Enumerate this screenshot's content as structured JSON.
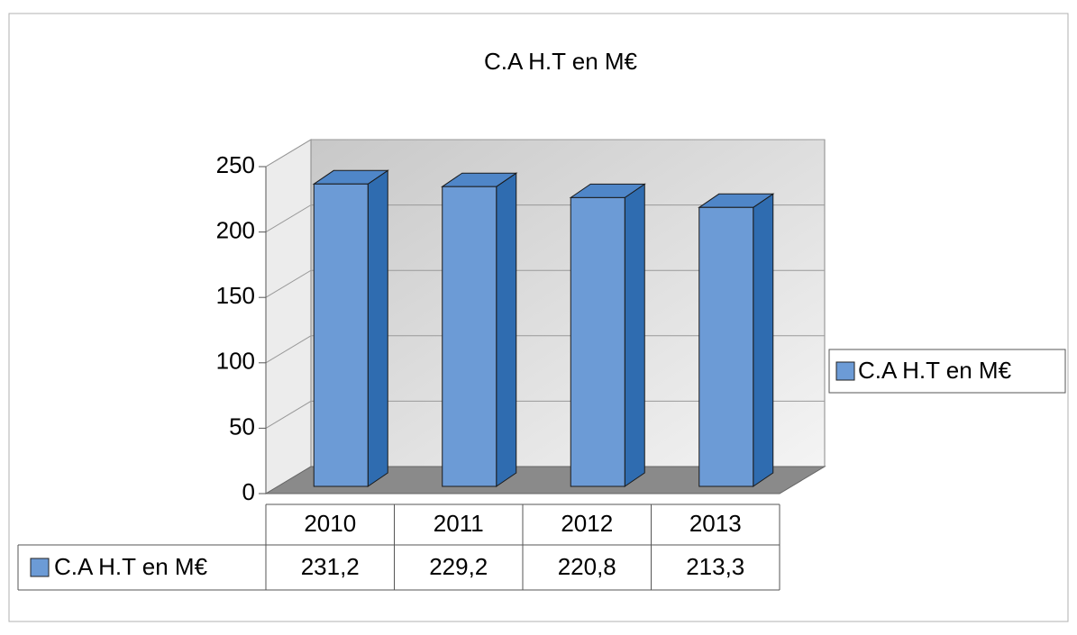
{
  "chart_data": {
    "type": "bar3d",
    "title": "C.A H.T en M€",
    "categories": [
      "2010",
      "2011",
      "2012",
      "2013"
    ],
    "series": [
      {
        "name": "C.A H.T en M€",
        "color": "#6c9bd6",
        "values": [
          231.2,
          229.2,
          220.8,
          213.3
        ],
        "value_labels": [
          "231,2",
          "229,2",
          "220,8",
          "213,3"
        ]
      }
    ],
    "ylim": [
      0,
      250
    ],
    "yticks": [
      0,
      50,
      100,
      150,
      200,
      250
    ],
    "grid": true,
    "legend": "right",
    "data_table": true
  }
}
